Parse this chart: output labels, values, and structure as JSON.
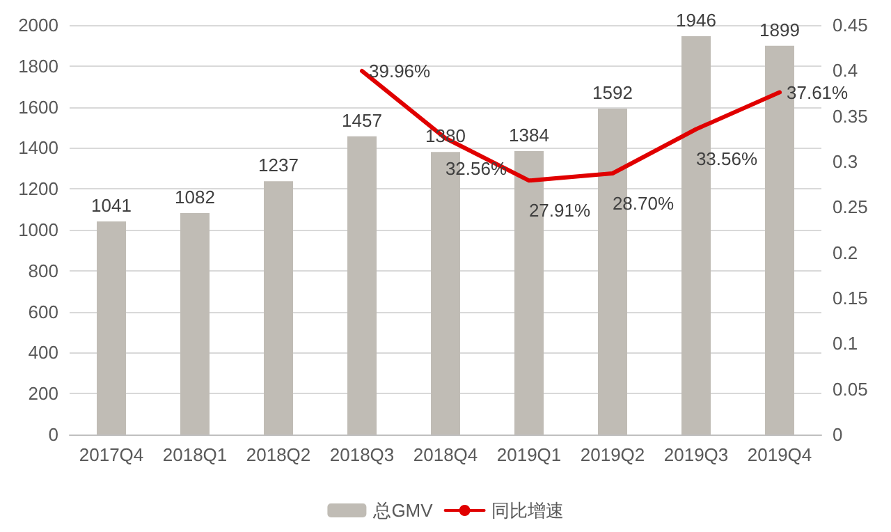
{
  "chart_data": {
    "type": "bar",
    "categories": [
      "2017Q4",
      "2018Q1",
      "2018Q2",
      "2018Q3",
      "2018Q4",
      "2019Q1",
      "2019Q2",
      "2019Q3",
      "2019Q4"
    ],
    "series": [
      {
        "name": "总GMV",
        "color": "#c0bcb5",
        "values": [
          1041,
          1082,
          1237,
          1457,
          1380,
          1384,
          1592,
          1946,
          1899
        ]
      },
      {
        "name": "同比增速",
        "type": "line",
        "axis": "y2",
        "color": "#e00000",
        "values": [
          null,
          null,
          null,
          0.3996,
          0.3256,
          0.2791,
          0.287,
          0.3356,
          0.3761
        ],
        "value_labels": [
          null,
          null,
          null,
          "39.96%",
          "32.56%",
          "27.91%",
          "28.70%",
          "33.56%",
          "37.61%"
        ]
      }
    ],
    "data_labels": true,
    "ylim": [
      0,
      2000
    ],
    "yticks": [
      0,
      200,
      400,
      600,
      800,
      1000,
      1200,
      1400,
      1600,
      1800,
      2000
    ],
    "y2lim": [
      0,
      0.45
    ],
    "y2ticks": [
      0,
      0.05,
      0.1,
      0.15,
      0.2,
      0.25,
      0.3,
      0.35,
      0.4,
      0.45
    ],
    "grid": "y",
    "legend": "bottom",
    "line_style": "solid",
    "marker": "none"
  }
}
